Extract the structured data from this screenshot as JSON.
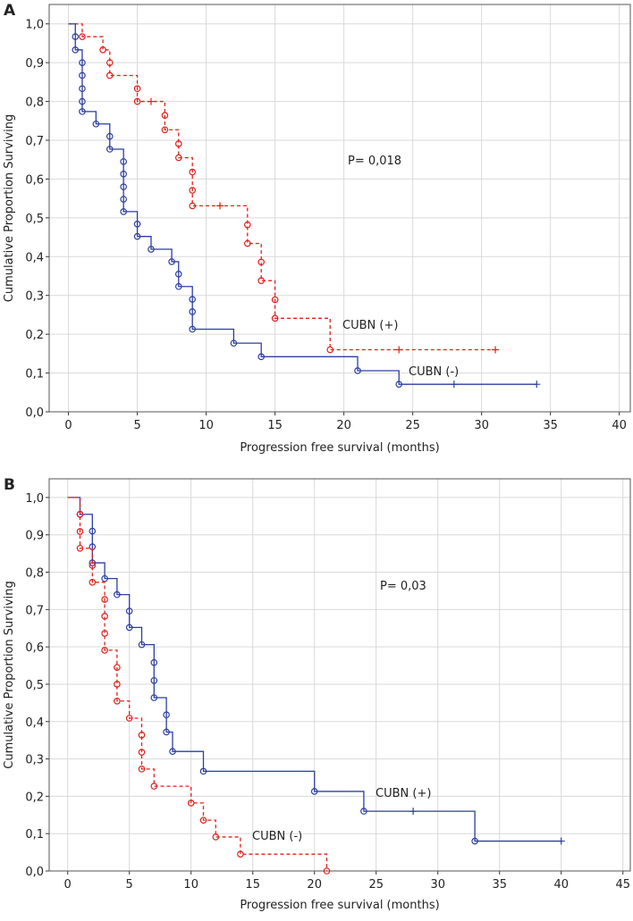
{
  "chart_data": [
    {
      "type": "step",
      "panel": "A",
      "xlabel": "Progression free survival (months)",
      "ylabel": "Cumulative Proportion Surviving",
      "annotation": "P= 0,018",
      "xlim": [
        -1.4,
        40.8
      ],
      "ylim": [
        0,
        1.05
      ],
      "xticks": [
        0,
        5,
        10,
        15,
        20,
        25,
        30,
        35,
        40
      ],
      "yticks": [
        {
          "value": 0,
          "label": "0,0"
        },
        {
          "value": 0.1,
          "label": "0,1"
        },
        {
          "value": 0.2,
          "label": "0,2"
        },
        {
          "value": 0.3,
          "label": "0,3"
        },
        {
          "value": 0.4,
          "label": "0,4"
        },
        {
          "value": 0.5,
          "label": "0,5"
        },
        {
          "value": 0.6,
          "label": "0,6"
        },
        {
          "value": 0.7,
          "label": "0,7"
        },
        {
          "value": 0.8,
          "label": "0,8"
        },
        {
          "value": 0.9,
          "label": "0,9"
        },
        {
          "value": 1.0,
          "label": "1,0"
        }
      ],
      "grid": true,
      "series": [
        {
          "name": "CUBN (+)",
          "color": "#e0201b",
          "line_style": "dashed",
          "x": [
            0,
            1,
            2.5,
            3,
            3,
            5,
            5,
            7,
            7,
            8,
            8,
            9,
            9,
            9,
            13,
            13,
            14,
            14,
            15,
            15,
            19
          ],
          "values": [
            1.0,
            0.967,
            0.933,
            0.9,
            0.867,
            0.833,
            0.8,
            0.764,
            0.727,
            0.691,
            0.655,
            0.618,
            0.571,
            0.531,
            0.482,
            0.434,
            0.386,
            0.338,
            0.289,
            0.241,
            0.16
          ],
          "censored_x": [
            6,
            11,
            24,
            31
          ],
          "censored_values": [
            0.8,
            0.531,
            0.16,
            0.16
          ]
        },
        {
          "name": "CUBN (-)",
          "color": "#2b3fa0",
          "line_style": "solid",
          "x": [
            0,
            0.5,
            0.5,
            1,
            1,
            1,
            1,
            1,
            2,
            3,
            3,
            4,
            4,
            4,
            4,
            4,
            5,
            5,
            6,
            7.5,
            8,
            8,
            9,
            9,
            9,
            12,
            14,
            21,
            24
          ],
          "values": [
            1.0,
            0.967,
            0.933,
            0.9,
            0.867,
            0.833,
            0.8,
            0.774,
            0.742,
            0.71,
            0.677,
            0.645,
            0.613,
            0.58,
            0.548,
            0.516,
            0.484,
            0.452,
            0.419,
            0.387,
            0.355,
            0.323,
            0.29,
            0.258,
            0.213,
            0.177,
            0.142,
            0.106,
            0.071
          ],
          "censored_x": [
            28,
            34
          ],
          "censored_values": [
            0.071,
            0.071
          ]
        }
      ]
    },
    {
      "type": "step",
      "panel": "B",
      "xlabel": "Progression free survival (months)",
      "ylabel": "Cumulative Proportion Surviving",
      "annotation": "P= 0,03",
      "xlim": [
        -1.5,
        45.6
      ],
      "ylim": [
        0,
        1.05
      ],
      "xticks": [
        0,
        5,
        10,
        15,
        20,
        25,
        30,
        35,
        40,
        45
      ],
      "yticks": [
        {
          "value": 0,
          "label": "0,0"
        },
        {
          "value": 0.1,
          "label": "0,1"
        },
        {
          "value": 0.2,
          "label": "0,2"
        },
        {
          "value": 0.3,
          "label": "0,3"
        },
        {
          "value": 0.4,
          "label": "0,4"
        },
        {
          "value": 0.5,
          "label": "0,5"
        },
        {
          "value": 0.6,
          "label": "0,6"
        },
        {
          "value": 0.7,
          "label": "0,7"
        },
        {
          "value": 0.8,
          "label": "0,8"
        },
        {
          "value": 0.9,
          "label": "0,9"
        },
        {
          "value": 1.0,
          "label": "1,0"
        }
      ],
      "grid": true,
      "series": [
        {
          "name": "CUBN (+)",
          "color": "#2b3fa0",
          "line_style": "solid",
          "x": [
            0,
            1,
            2,
            2,
            2,
            3,
            4,
            5,
            5,
            6,
            7,
            7,
            7,
            8,
            8,
            8.5,
            11,
            20,
            24,
            33
          ],
          "values": [
            1.0,
            0.955,
            0.91,
            0.868,
            0.825,
            0.783,
            0.74,
            0.696,
            0.652,
            0.606,
            0.558,
            0.51,
            0.464,
            0.418,
            0.372,
            0.32,
            0.267,
            0.213,
            0.16,
            0.08
          ],
          "censored_x": [
            28,
            40
          ],
          "censored_values": [
            0.16,
            0.08
          ]
        },
        {
          "name": "CUBN (-)",
          "color": "#e0201b",
          "line_style": "dashed",
          "x": [
            0,
            1,
            1,
            1,
            2,
            2,
            3,
            3,
            3,
            3,
            4,
            4,
            4,
            5,
            6,
            6,
            6,
            7,
            10,
            11,
            12,
            14,
            21
          ],
          "values": [
            1.0,
            0.955,
            0.909,
            0.864,
            0.818,
            0.773,
            0.727,
            0.682,
            0.636,
            0.591,
            0.545,
            0.5,
            0.455,
            0.409,
            0.364,
            0.318,
            0.273,
            0.227,
            0.182,
            0.136,
            0.091,
            0.045,
            0.0
          ]
        }
      ]
    }
  ]
}
